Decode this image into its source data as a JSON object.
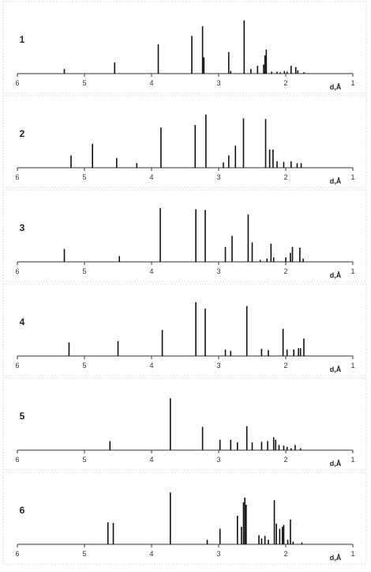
{
  "chart_data": [
    {
      "type": "bar",
      "panel_label": "1",
      "xlabel": "d,Å",
      "xlim": [
        6,
        1
      ],
      "x_ticks": [
        "6",
        "5",
        "4",
        "3",
        "2",
        "1"
      ],
      "x": [
        5.3,
        4.55,
        3.9,
        3.4,
        3.24,
        3.22,
        2.85,
        2.82,
        2.62,
        2.52,
        2.42,
        2.33,
        2.31,
        2.29,
        2.21,
        2.13,
        2.08,
        2.02,
        1.98,
        1.92,
        1.85,
        1.82,
        1.73
      ],
      "values": [
        7,
        17,
        45,
        58,
        73,
        25,
        33,
        4,
        82,
        7,
        12,
        14,
        28,
        37,
        3,
        3,
        2,
        4,
        3,
        12,
        10,
        5,
        2
      ]
    },
    {
      "type": "bar",
      "panel_label": "2",
      "xlabel": "d,Å",
      "xlim": [
        6,
        1
      ],
      "x_ticks": [
        "6",
        "5",
        "4",
        "3",
        "2",
        "1"
      ],
      "x": [
        5.2,
        4.88,
        4.52,
        4.22,
        3.86,
        3.35,
        3.19,
        2.93,
        2.85,
        2.75,
        2.63,
        2.3,
        2.24,
        2.19,
        2.13,
        2.03,
        1.92,
        1.83,
        1.77
      ],
      "values": [
        19,
        37,
        15,
        7,
        62,
        66,
        82,
        8,
        19,
        34,
        76,
        75,
        28,
        28,
        10,
        9,
        10,
        7,
        7
      ]
    },
    {
      "type": "bar",
      "panel_label": "3",
      "xlabel": "d,Å",
      "xlim": [
        6,
        1
      ],
      "x_ticks": [
        "6",
        "5",
        "4",
        "3",
        "2",
        "1"
      ],
      "x": [
        5.3,
        4.48,
        3.87,
        3.34,
        3.2,
        2.9,
        2.8,
        2.56,
        2.5,
        2.38,
        2.28,
        2.22,
        2.18,
        2.0,
        1.93,
        1.9,
        1.79,
        1.74
      ],
      "values": [
        20,
        9,
        83,
        81,
        80,
        23,
        40,
        73,
        30,
        3,
        5,
        28,
        7,
        7,
        14,
        23,
        22,
        5
      ]
    },
    {
      "type": "bar",
      "panel_label": "4",
      "xlabel": "d,Å",
      "xlim": [
        6,
        1
      ],
      "x_ticks": [
        "6",
        "5",
        "4",
        "3",
        "2",
        "1"
      ],
      "x": [
        5.23,
        4.5,
        3.84,
        3.34,
        3.2,
        2.9,
        2.82,
        2.58,
        2.36,
        2.26,
        2.04,
        1.98,
        1.88,
        1.81,
        1.78,
        1.73
      ],
      "values": [
        21,
        23,
        40,
        83,
        73,
        10,
        8,
        77,
        11,
        9,
        42,
        10,
        10,
        12,
        12,
        27
      ]
    },
    {
      "type": "bar",
      "panel_label": "5",
      "xlabel": "d,Å",
      "xlim": [
        6,
        1
      ],
      "x_ticks": [
        "6",
        "5",
        "4",
        "3",
        "2",
        "1"
      ],
      "x": [
        4.62,
        3.72,
        3.24,
        2.98,
        2.82,
        2.72,
        2.58,
        2.5,
        2.36,
        2.27,
        2.18,
        2.15,
        2.1,
        2.03,
        1.98,
        1.92,
        1.86,
        1.78
      ],
      "values": [
        14,
        80,
        36,
        16,
        16,
        12,
        37,
        12,
        13,
        14,
        20,
        16,
        8,
        7,
        5,
        3,
        8,
        3
      ]
    },
    {
      "type": "bar",
      "panel_label": "6",
      "xlabel": "d,Å",
      "xlim": [
        6,
        1
      ],
      "x_ticks": [
        "6",
        "5",
        "4",
        "3",
        "2",
        "1"
      ],
      "x": [
        4.65,
        4.57,
        3.72,
        3.17,
        2.98,
        2.72,
        2.66,
        2.63,
        2.61,
        2.59,
        2.4,
        2.36,
        2.31,
        2.26,
        2.17,
        2.14,
        2.09,
        2.05,
        2.03,
        1.97,
        1.93,
        1.89,
        1.76
      ],
      "values": [
        34,
        33,
        80,
        7,
        24,
        44,
        27,
        65,
        72,
        61,
        14,
        9,
        13,
        7,
        68,
        32,
        24,
        27,
        30,
        7,
        38,
        4,
        3
      ]
    }
  ]
}
